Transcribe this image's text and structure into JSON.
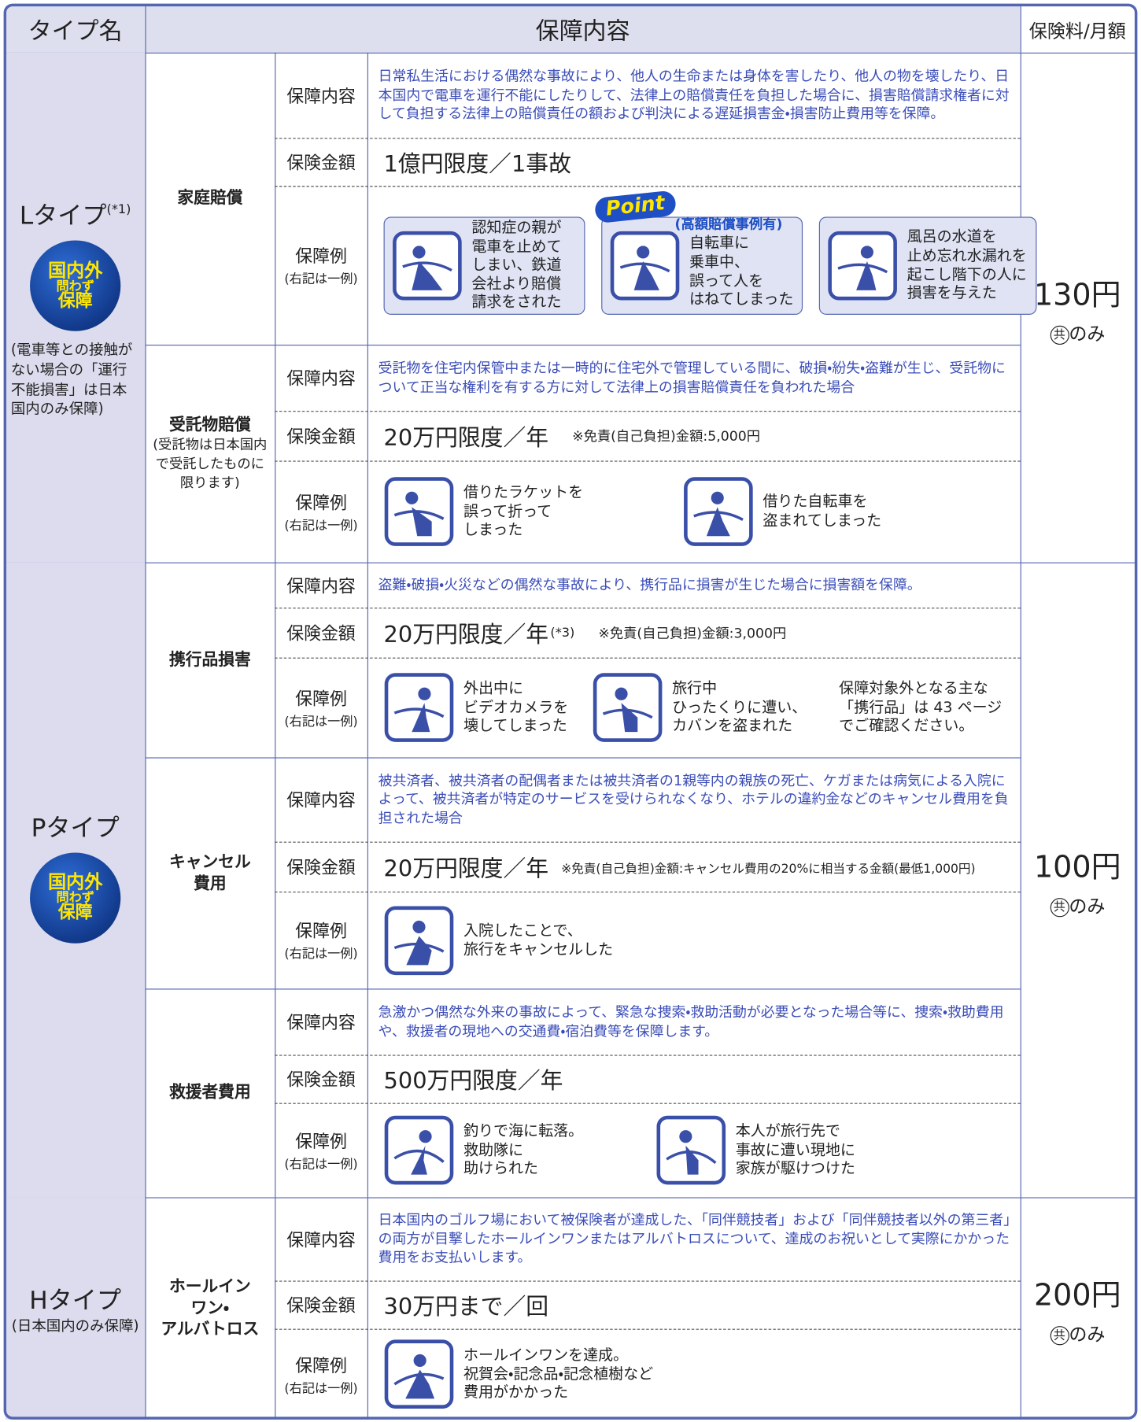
{
  "header": {
    "type_name": "タイプ名",
    "coverage": "保障内容",
    "premium": "保険料/月額"
  },
  "labels": {
    "coverage": "保障内容",
    "amount": "保険金額",
    "example": "保障例",
    "example_note": "(右記は一例)"
  },
  "plans": [
    {
      "name": "Lタイプ",
      "name_sup": "(*1)",
      "badge": [
        "国内外",
        "問わず",
        "保障"
      ],
      "note": "(電車等との接触がない場合の「運行不能損害」は日本国内のみ保障)",
      "premium": "130円",
      "premium_mark": "共",
      "premium_note": "のみ",
      "items": [
        {
          "name": [
            "家庭賠償"
          ],
          "coverage": "日常私生活における偶然な事故により、他人の生命または身体を害したり、他人の物を壊したり、日本国内で電車を運行不能にしたりして、法律上の賠償責任を負担した場合に、損害賠償請求権者に対して負担する法律上の賠償責任の額および判決による遅延損害金・損害防止費用等を保障。",
          "amount": "1億円限度／1事故",
          "examples": [
            {
              "lines": [
                "認知症の親が",
                "電車を止めて",
                "しまい、鉄道",
                "会社より賠償",
                "請求をされた"
              ]
            },
            {
              "point": "Point",
              "point_note": "(高額賠償事例有)",
              "lines": [
                "自転車に",
                "乗車中、",
                "誤って人を",
                "はねてしまった"
              ]
            },
            {
              "lines": [
                "風呂の水道を",
                "止め忘れ水漏れを",
                "起こし階下の人に",
                "損害を与えた"
              ]
            }
          ]
        },
        {
          "name": [
            "受託物賠償"
          ],
          "name_note": "(受託物は日本国内で受託したものに限ります)",
          "coverage": "受託物を住宅内保管中または一時的に住宅外で管理している間に、破損・紛失・盗難が生じ、受託物について正当な権利を有する方に対して法律上の損害賠償責任を負われた場合",
          "amount": "20万円限度／年",
          "amount_note": "※免責(自己負担)金額:5,000円",
          "examples": [
            {
              "lines": [
                "借りたラケットを",
                "誤って折って",
                "しまった"
              ]
            },
            {
              "lines": [
                "借りた自転車を",
                "盗まれてしまった"
              ]
            }
          ]
        }
      ]
    },
    {
      "name": "Pタイプ",
      "badge": [
        "国内外",
        "問わず",
        "保障"
      ],
      "premium": "100円",
      "premium_mark": "共",
      "premium_note": "のみ",
      "items": [
        {
          "name": [
            "携行品損害"
          ],
          "coverage": "盗難・破損・火災などの偶然な事故により、携行品に損害が生じた場合に損害額を保障。",
          "amount": "20万円限度／年",
          "amount_sup": "(*3)",
          "amount_note": "※免責(自己負担)金額:3,000円",
          "examples": [
            {
              "lines": [
                "外出中に",
                "ビデオカメラを",
                "壊してしまった"
              ]
            },
            {
              "lines": [
                "旅行中",
                "ひったくりに遭い、",
                "カバンを盗まれた"
              ]
            },
            {
              "plain": true,
              "lines": [
                "保障対象外となる主な",
                "「携行品」は 43 ページ",
                "でご確認ください。"
              ]
            }
          ]
        },
        {
          "name": [
            "キャンセル",
            "費用"
          ],
          "coverage": "被共済者、被共済者の配偶者または被共済者の1親等内の親族の死亡、ケガまたは病気による入院によって、被共済者が特定のサービスを受けられなくなり、ホテルの違約金などのキャンセル費用を負担された場合",
          "amount": "20万円限度／年",
          "amount_note": "※免責(自己負担)金額:キャンセル費用の20%に相当する金額(最低1,000円)",
          "examples": [
            {
              "lines": [
                "入院したことで、",
                "旅行をキャンセルした"
              ]
            }
          ]
        },
        {
          "name": [
            "救援者費用"
          ],
          "coverage": "急激かつ偶然な外来の事故によって、緊急な捜索・救助活動が必要となった場合等に、捜索・救助費用や、救援者の現地への交通費・宿泊費等を保障します。",
          "amount": "500万円限度／年",
          "examples": [
            {
              "lines": [
                "釣りで海に転落。",
                "救助隊に",
                "助けられた"
              ]
            },
            {
              "lines": [
                "本人が旅行先で",
                "事故に遭い現地に",
                "家族が駆けつけた"
              ]
            }
          ]
        }
      ]
    },
    {
      "name": "Hタイプ",
      "note": "(日本国内のみ保障)",
      "premium": "200円",
      "premium_mark": "共",
      "premium_note": "のみ",
      "items": [
        {
          "name": [
            "ホールイン",
            "ワン・",
            "アルバトロス"
          ],
          "coverage": "日本国内のゴルフ場において被保険者が達成した、「同伴競技者」および「同伴競技者以外の第三者」の両方が目撃したホールインワンまたはアルバトロスについて、達成のお祝いとして実際にかかった費用をお支払いします。",
          "amount": "30万円まで／回",
          "examples": [
            {
              "lines": [
                "ホールインワンを達成。",
                "祝賀会・記念品・記念植樹など",
                "費用がかかった"
              ]
            }
          ]
        }
      ]
    }
  ]
}
